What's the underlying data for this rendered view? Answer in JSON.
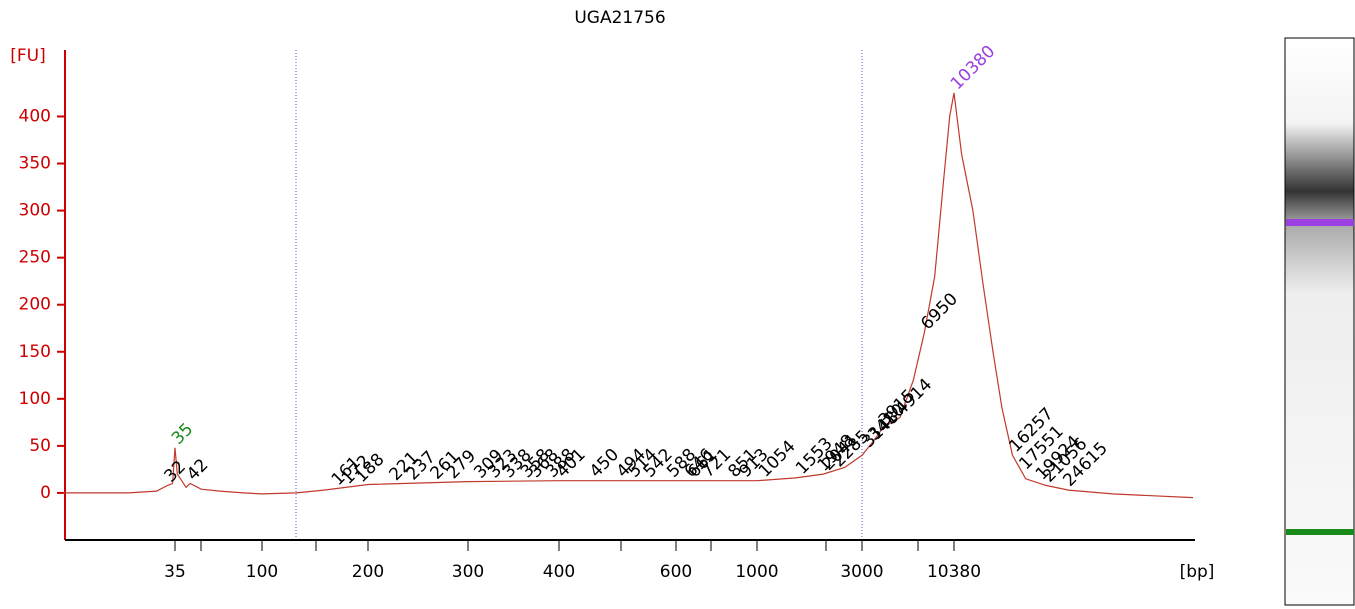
{
  "chart_data": {
    "type": "line",
    "title": "UGA21756",
    "y_label": "[FU]",
    "x_label": "[bp]",
    "xticks": [
      35,
      100,
      200,
      300,
      400,
      600,
      1000,
      3000,
      10380
    ],
    "ylim": [
      -50,
      460
    ],
    "yticks": [
      0,
      50,
      100,
      150,
      200,
      250,
      300,
      350,
      400
    ],
    "axis_color": "#cc0000",
    "series": [
      {
        "color": "#c0392b",
        "x": [
          9,
          20,
          28,
          32,
          34,
          35,
          36,
          40,
          42,
          48,
          60,
          80,
          100,
          125,
          150,
          200,
          300,
          400,
          600,
          1000,
          1500,
          2000,
          2500,
          3000,
          3500,
          4000,
          5000,
          6000,
          6950,
          8000,
          9000,
          9800,
          10380,
          11000,
          12000,
          13000,
          14000,
          15000,
          16257,
          18000,
          21000,
          25000,
          35000,
          65000
        ],
        "values": [
          0,
          0,
          2,
          8,
          10,
          48,
          20,
          6,
          10,
          4,
          2,
          0,
          -1,
          0,
          3,
          9,
          12,
          13,
          13,
          13,
          16,
          20,
          27,
          40,
          55,
          70,
          80,
          120,
          170,
          230,
          330,
          400,
          425,
          360,
          300,
          220,
          150,
          90,
          40,
          15,
          8,
          3,
          -1,
          -5
        ]
      }
    ],
    "peaks": [
      {
        "size": 32
      },
      {
        "size": 35,
        "color": "#1a8a1a"
      },
      {
        "size": 42
      },
      {
        "size": 161
      },
      {
        "size": 172
      },
      {
        "size": 188
      },
      {
        "size": 221
      },
      {
        "size": 237
      },
      {
        "size": 261
      },
      {
        "size": 279
      },
      {
        "size": 309
      },
      {
        "size": 323
      },
      {
        "size": 338
      },
      {
        "size": 358
      },
      {
        "size": 368
      },
      {
        "size": 388
      },
      {
        "size": 401
      },
      {
        "size": 450
      },
      {
        "size": 494
      },
      {
        "size": 514
      },
      {
        "size": 542
      },
      {
        "size": 588
      },
      {
        "size": 646
      },
      {
        "size": 661
      },
      {
        "size": 721
      },
      {
        "size": 851
      },
      {
        "size": 913
      },
      {
        "size": 1054
      },
      {
        "size": 1553
      },
      {
        "size": 1948
      },
      {
        "size": 2041
      },
      {
        "size": 2285
      },
      {
        "size": 3148
      },
      {
        "size": 3410
      },
      {
        "size": 3915
      },
      {
        "size": 4914
      },
      {
        "size": 6950
      },
      {
        "size": 10380,
        "color": "#9b3fe0"
      },
      {
        "size": 16257
      },
      {
        "size": 17551
      },
      {
        "size": 19924
      },
      {
        "size": 21056
      },
      {
        "size": 24615
      }
    ]
  }
}
